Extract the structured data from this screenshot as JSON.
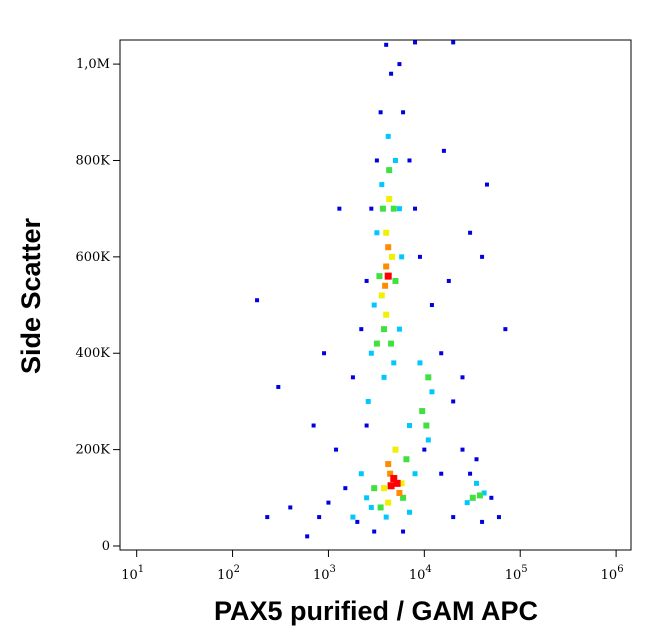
{
  "chart_data": {
    "type": "scatter",
    "log_x": true,
    "xlabel": "PAX5 purified / GAM APC",
    "ylabel": "Side Scatter",
    "xlim": [
      6.7,
      1430000
    ],
    "ylim": [
      -8300,
      1050000
    ],
    "xticks": [
      {
        "value": 10,
        "label": "10",
        "exponent": "1"
      },
      {
        "value": 100,
        "label": "10",
        "exponent": "2"
      },
      {
        "value": 1000,
        "label": "10",
        "exponent": "3"
      },
      {
        "value": 10000,
        "label": "10",
        "exponent": "4"
      },
      {
        "value": 100000,
        "label": "10",
        "exponent": "5"
      },
      {
        "value": 1000000,
        "label": "10",
        "exponent": "6"
      }
    ],
    "yticks": [
      0,
      {
        "value": 200000,
        "label": "200K"
      },
      {
        "value": 400000,
        "label": "400K"
      },
      {
        "value": 600000,
        "label": "600K"
      },
      {
        "value": 800000,
        "label": "800K"
      },
      {
        "value": 1000000,
        "label": "1,0M"
      }
    ],
    "series": [
      {
        "color": "#0000e0",
        "x": [
          2000,
          1500,
          800,
          1200,
          2500,
          1800,
          2200,
          2500,
          2800,
          3200,
          3500,
          4500,
          5500,
          6000,
          7000,
          8000,
          9000,
          12000,
          15000,
          20000,
          25000,
          30000,
          50000,
          60000,
          40000,
          20000,
          15000,
          10000,
          6000,
          3000,
          1000,
          600,
          400,
          230,
          180,
          300,
          900,
          700,
          18000,
          30000,
          40000,
          70000,
          45000,
          4000,
          8000,
          20000,
          1300,
          16000,
          25000,
          35000
        ],
        "y": [
          50000,
          120000,
          60000,
          200000,
          250000,
          350000,
          450000,
          550000,
          700000,
          800000,
          900000,
          980000,
          1000000,
          900000,
          800000,
          700000,
          600000,
          500000,
          400000,
          300000,
          200000,
          150000,
          100000,
          60000,
          50000,
          60000,
          150000,
          200000,
          30000,
          30000,
          90000,
          20000,
          80000,
          60000,
          510000,
          330000,
          400000,
          250000,
          550000,
          650000,
          600000,
          450000,
          750000,
          1040000,
          1045000,
          1045000,
          700000,
          820000,
          350000,
          180000
        ]
      },
      {
        "color": "#00c8ff",
        "x": [
          2600,
          2800,
          3000,
          3200,
          3600,
          4200,
          5000,
          5500,
          5800,
          5500,
          4800,
          3800,
          2200,
          2800,
          4000,
          7000,
          8000,
          7000,
          9000,
          12000,
          11000,
          28000,
          42000,
          35000,
          2500,
          1800
        ],
        "y": [
          300000,
          400000,
          500000,
          650000,
          750000,
          850000,
          800000,
          700000,
          600000,
          450000,
          380000,
          350000,
          150000,
          80000,
          60000,
          70000,
          150000,
          250000,
          380000,
          320000,
          220000,
          90000,
          110000,
          130000,
          100000,
          60000
        ]
      },
      {
        "color": "#40e040",
        "x": [
          3200,
          3400,
          3700,
          4300,
          4800,
          5000,
          4500,
          3800,
          3000,
          3500,
          6000,
          6500,
          9500,
          11000,
          10500,
          32000,
          38000
        ],
        "y": [
          420000,
          560000,
          700000,
          780000,
          700000,
          550000,
          420000,
          450000,
          120000,
          80000,
          100000,
          180000,
          280000,
          350000,
          250000,
          100000,
          105000
        ]
      },
      {
        "color": "#f0f000",
        "x": [
          3600,
          4000,
          4300,
          4600,
          4000,
          3800,
          5800,
          5000,
          4200
        ],
        "y": [
          520000,
          650000,
          720000,
          600000,
          480000,
          120000,
          130000,
          200000,
          90000
        ]
      },
      {
        "color": "#ff8c00",
        "x": [
          4000,
          4200,
          3900,
          4400,
          5500,
          4200
        ],
        "y": [
          580000,
          620000,
          540000,
          150000,
          110000,
          170000
        ]
      },
      {
        "color": "#ff0000",
        "x": [
          4800,
          5200,
          4500,
          4200
        ],
        "y": [
          140000,
          130000,
          125000,
          560000
        ]
      }
    ]
  }
}
